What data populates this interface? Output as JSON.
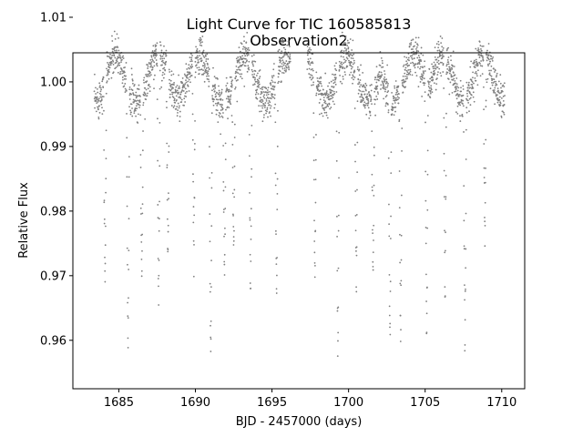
{
  "chart_data": {
    "type": "scatter",
    "title_line1": "Light Curve for TIC 160585813",
    "title_line2": "Observation2",
    "xlabel": "BJD - 2457000 (days)",
    "ylabel": "Relative Flux",
    "xlim": [
      1682.0,
      1711.5
    ],
    "ylim": [
      0.9525,
      1.0045
    ],
    "x_ticks": [
      1685,
      1690,
      1695,
      1700,
      1705,
      1710
    ],
    "x_tick_labels": [
      "1685",
      "1690",
      "1695",
      "1700",
      "1705",
      "1710"
    ],
    "y_ticks": [
      0.96,
      0.97,
      0.98,
      0.99,
      1.0,
      1.01
    ],
    "y_tick_labels": [
      "0.96",
      "0.97",
      "0.98",
      "0.99",
      "1.00",
      "1.01"
    ],
    "marker_color": "#7f7f7f",
    "series": [
      {
        "name": "flux",
        "time_range_1": [
          1683.4,
          1696.2
        ],
        "time_range_2": [
          1697.3,
          1710.2
        ],
        "gap": [
          1696.2,
          1697.3
        ],
        "baseline": 1.0,
        "variability_amplitude": 0.004,
        "variability_period": 2.75,
        "variability_peaks": [
          1684.8,
          1687.6,
          1690.2,
          1693.2,
          1699.9,
          1704.3,
          1706.1,
          1708.8
        ],
        "scatter": 0.0015,
        "eclipse_times": [
          1684.1,
          1685.6,
          1686.5,
          1687.6,
          1688.2,
          1689.9,
          1691.0,
          1691.9,
          1692.5,
          1693.6,
          1695.3,
          1697.8,
          1699.3,
          1700.5,
          1701.6,
          1702.7,
          1703.4,
          1705.1,
          1706.3,
          1707.6,
          1708.9
        ],
        "eclipse_depths": [
          0.0315,
          0.041,
          0.0285,
          0.0385,
          0.0275,
          0.0315,
          0.043,
          0.0275,
          0.0285,
          0.0365,
          0.0335,
          0.0305,
          0.044,
          0.033,
          0.0285,
          0.0385,
          0.0395,
          0.0395,
          0.0365,
          0.0385,
          0.0275
        ]
      }
    ]
  }
}
